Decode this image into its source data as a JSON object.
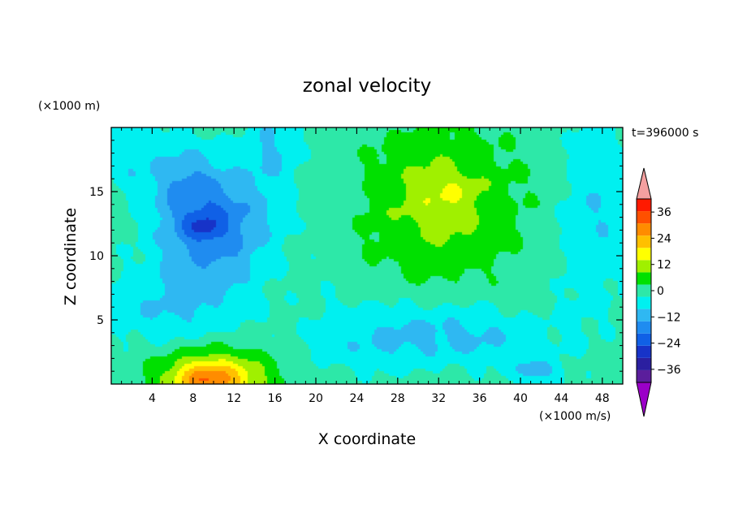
{
  "chart_data": {
    "type": "heatmap",
    "title": "zonal velocity",
    "xlabel": "X coordinate",
    "ylabel": "Z coordinate",
    "x_unit": "(×1000 m/s)",
    "y_unit": "(×1000 m)",
    "time_label": "t=396000 s",
    "xlim": [
      0,
      50
    ],
    "ylim": [
      0,
      20
    ],
    "x_ticks": [
      4,
      8,
      12,
      16,
      20,
      24,
      28,
      32,
      36,
      40,
      44,
      48
    ],
    "x_tick_labels": [
      "4",
      "8",
      "12",
      "16",
      "20",
      "24",
      "28",
      "32",
      "36",
      "40",
      "44",
      "48"
    ],
    "y_ticks": [
      5,
      10,
      15
    ],
    "y_tick_labels": [
      "5",
      "10",
      "15"
    ],
    "colorbar": {
      "levels": [
        -42,
        -36,
        -30,
        -24,
        -18,
        -12,
        -6,
        0,
        6,
        12,
        18,
        24,
        30,
        36,
        42
      ],
      "colors": [
        "#5b1e9c",
        "#2b1fa0",
        "#1733c8",
        "#1060e6",
        "#1f8cf0",
        "#2fb8f2",
        "#00f0f0",
        "#2de8a8",
        "#00e000",
        "#a0f000",
        "#ffff00",
        "#ffc000",
        "#ff8c00",
        "#ff5000",
        "#ff1a00"
      ],
      "under_color": "#9b00c8",
      "over_color": "#f4a0a0",
      "tick_values": [
        36,
        24,
        12,
        0,
        -12,
        -24,
        -36
      ],
      "tick_labels": [
        "36",
        "24",
        "12",
        "0",
        "−12",
        "−24",
        "−36"
      ]
    },
    "field_features": [
      {
        "kind": "bg",
        "value": 3
      },
      {
        "kind": "bump",
        "x": 10,
        "z": 0.3,
        "sx": 5,
        "sz": 2.2,
        "amp": 26
      },
      {
        "kind": "bump",
        "x": 9,
        "z": 0.5,
        "sx": 2.5,
        "sz": 0.9,
        "amp": 8
      },
      {
        "kind": "bump",
        "x": 10,
        "z": 12.5,
        "sx": 5.5,
        "sz": 4.5,
        "amp": -21
      },
      {
        "kind": "bump",
        "x": 7,
        "z": 16,
        "sx": 3,
        "sz": 3.2,
        "amp": -8
      },
      {
        "kind": "bump",
        "x": 6,
        "z": 6,
        "sx": 7,
        "sz": 3,
        "amp": -9
      },
      {
        "kind": "bump",
        "x": 2,
        "z": 18,
        "sx": 2.5,
        "sz": 3,
        "amp": -8
      },
      {
        "kind": "bump",
        "x": 9,
        "z": 12.2,
        "sx": 1.6,
        "sz": 0.9,
        "amp": -9
      },
      {
        "kind": "bump",
        "x": 16,
        "z": 19,
        "sx": 2.5,
        "sz": 4,
        "amp": -9
      },
      {
        "kind": "bump",
        "x": 32,
        "z": 14,
        "sx": 7,
        "sz": 5.5,
        "amp": 12
      },
      {
        "kind": "bump",
        "x": 33,
        "z": 15,
        "sx": 3,
        "sz": 1.6,
        "amp": 4
      },
      {
        "kind": "bump",
        "x": 31,
        "z": 4,
        "sx": 10,
        "sz": 2.5,
        "amp": -10
      },
      {
        "kind": "bump",
        "x": 26,
        "z": 2.5,
        "sx": 5,
        "sz": 1.8,
        "amp": -3
      },
      {
        "kind": "bump",
        "x": 38,
        "z": 3,
        "sx": 5,
        "sz": 2,
        "amp": -3
      },
      {
        "kind": "bump",
        "x": 41.5,
        "z": 1,
        "sx": 2.2,
        "sz": 0.9,
        "amp": -12
      },
      {
        "kind": "bump",
        "x": 48,
        "z": 14,
        "sx": 3,
        "sz": 8,
        "amp": -8
      },
      {
        "kind": "bump",
        "x": 22,
        "z": 10,
        "sx": 2.2,
        "sz": 10,
        "amp": -2
      },
      {
        "kind": "bump",
        "x": 45,
        "z": 10,
        "sx": 2.2,
        "sz": 9,
        "amp": -3
      }
    ]
  }
}
